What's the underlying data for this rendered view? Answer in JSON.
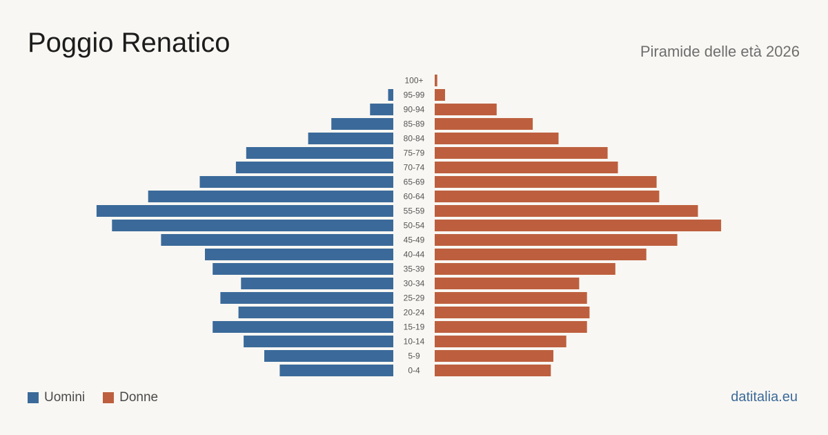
{
  "header": {
    "title": "Poggio Renatico",
    "subtitle": "Piramide delle età 2026"
  },
  "colors": {
    "men": "#3b6a9a",
    "women": "#bd5f3e",
    "brand": "#3b6a9a"
  },
  "legend": {
    "men_label": "Uomini",
    "women_label": "Donne"
  },
  "brand": {
    "text": "datitalia.eu"
  },
  "chart_data": {
    "type": "bar",
    "orientation": "horizontal",
    "layout": "population-pyramid",
    "title": "Poggio Renatico",
    "subtitle": "Piramide delle età 2026",
    "categories": [
      "100+",
      "95-99",
      "90-94",
      "85-89",
      "80-84",
      "75-79",
      "70-74",
      "65-69",
      "60-64",
      "55-59",
      "50-54",
      "45-49",
      "40-44",
      "35-39",
      "30-34",
      "25-29",
      "20-24",
      "15-19",
      "10-14",
      "5-9",
      "0-4"
    ],
    "series": [
      {
        "name": "Uomini",
        "color": "#3b6a9a",
        "side": "left",
        "values": [
          0,
          2,
          9,
          24,
          33,
          57,
          61,
          75,
          95,
          115,
          109,
          90,
          73,
          70,
          59,
          67,
          60,
          70,
          58,
          50,
          44
        ]
      },
      {
        "name": "Donne",
        "color": "#bd5f3e",
        "side": "right",
        "values": [
          1,
          4,
          24,
          38,
          48,
          67,
          71,
          86,
          87,
          102,
          111,
          94,
          82,
          70,
          56,
          59,
          60,
          59,
          51,
          46,
          45
        ]
      }
    ],
    "grid": false,
    "legend_position": "bottom-left",
    "axis_labels_shown": false
  }
}
